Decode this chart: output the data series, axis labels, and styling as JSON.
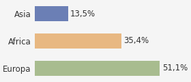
{
  "categories": [
    "Asia",
    "Africa",
    "Europa"
  ],
  "values": [
    13.5,
    35.4,
    51.1
  ],
  "labels": [
    "13,5%",
    "35,4%",
    "51,1%"
  ],
  "bar_colors": [
    "#6b7fb5",
    "#e8b882",
    "#a8bc8f"
  ],
  "background_color": "#f5f5f5",
  "xlim": [
    0,
    62
  ],
  "bar_height": 0.55,
  "label_fontsize": 8.5,
  "category_fontsize": 8.5
}
